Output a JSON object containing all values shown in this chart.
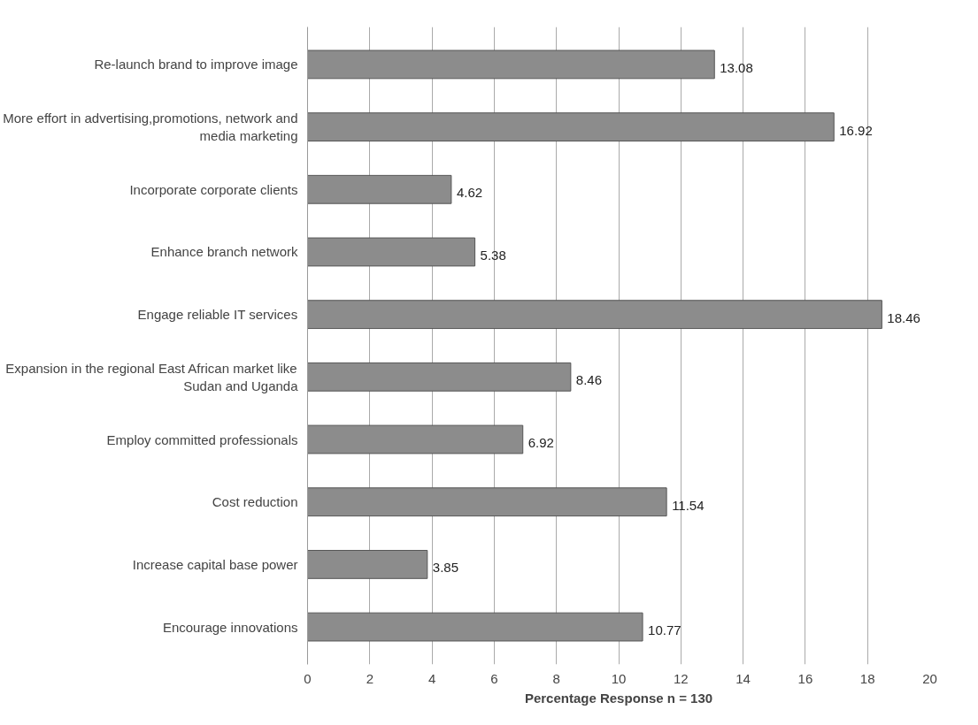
{
  "chart_data": {
    "type": "bar",
    "orientation": "horizontal",
    "categories": [
      "Re-launch brand to improve image",
      "More effort in advertising,promotions, network and media marketing",
      "Incorporate corporate clients",
      "Enhance branch network",
      "Engage reliable IT services",
      "Expansion in the regional East African market like Sudan and Uganda",
      "Employ committed professionals",
      "Cost reduction",
      "Increase capital base power",
      "Encourage innovations"
    ],
    "values": [
      13.08,
      16.92,
      4.62,
      5.38,
      18.46,
      8.46,
      6.92,
      11.54,
      3.85,
      10.77
    ],
    "color": "#8c8c8c",
    "data_labels": true,
    "xlabel": "Percentage Response n = 130",
    "xlim": [
      0,
      20
    ],
    "xticks": [
      0,
      2,
      4,
      6,
      8,
      10,
      12,
      14,
      16,
      18,
      20
    ],
    "grid": "x"
  }
}
